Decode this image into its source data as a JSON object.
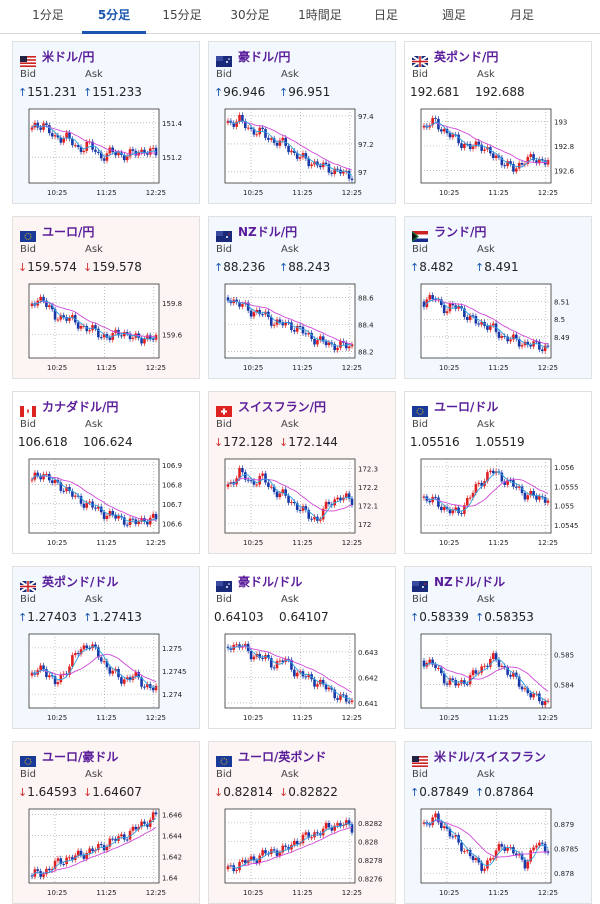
{
  "tabs": [
    "1分足",
    "5分足",
    "15分足",
    "30分足",
    "1時間足",
    "日足",
    "週足",
    "月足"
  ],
  "active_tab": 1,
  "labels": {
    "bid": "Bid",
    "ask": "Ask"
  },
  "colors": {
    "up": "#1a56b0",
    "down": "#d43030",
    "title": "#5a1d9a",
    "bull": "#e02020",
    "bear": "#1838a8",
    "ma_long": "#d048d8",
    "ma_short": "#30a0e0"
  },
  "cards": [
    {
      "pair": "米ドル/円",
      "flag": "us-jp-flag-icon",
      "bid": "151.231",
      "ask": "151.233",
      "dir": "up",
      "chart_data": {
        "type": "candlestick",
        "x_ticks": [
          "10:25",
          "11:25",
          "12:25"
        ],
        "y_ticks": [
          151.2,
          151.4
        ],
        "ylim": [
          151.05,
          151.48
        ],
        "trend": [
          151.36,
          151.4,
          151.3,
          151.33,
          151.24,
          151.28,
          151.2,
          151.23,
          151.21,
          151.22,
          151.24,
          151.22
        ]
      }
    },
    {
      "pair": "豪ドル/円",
      "flag": "au-jp-flag-icon",
      "bid": "96.946",
      "ask": "96.951",
      "dir": "up",
      "chart_data": {
        "type": "candlestick",
        "x_ticks": [
          "10:25",
          "11:25",
          "12:25"
        ],
        "y_ticks": [
          97,
          97.2,
          97.4
        ],
        "ylim": [
          96.92,
          97.45
        ],
        "trend": [
          97.35,
          97.37,
          97.3,
          97.28,
          97.22,
          97.2,
          97.12,
          97.08,
          97.05,
          97.02,
          97.0,
          96.95
        ]
      }
    },
    {
      "pair": "英ポンド/円",
      "flag": "gb-jp-flag-icon",
      "bid": "192.681",
      "ask": "192.688",
      "dir": "flat",
      "chart_data": {
        "type": "candlestick",
        "x_ticks": [
          "10:25",
          "11:25",
          "12:25"
        ],
        "y_ticks": [
          192.6,
          192.8,
          193
        ],
        "ylim": [
          192.5,
          193.1
        ],
        "trend": [
          192.95,
          193.0,
          192.9,
          192.85,
          192.78,
          192.82,
          192.72,
          192.68,
          192.6,
          192.7,
          192.68,
          192.69
        ]
      }
    },
    {
      "pair": "ユーロ/円",
      "flag": "eu-jp-flag-icon",
      "bid": "159.574",
      "ask": "159.578",
      "dir": "down",
      "chart_data": {
        "type": "candlestick",
        "x_ticks": [
          "10:25",
          "11:25",
          "12:25"
        ],
        "y_ticks": [
          159.6,
          159.8
        ],
        "ylim": [
          159.45,
          159.92
        ],
        "trend": [
          159.78,
          159.84,
          159.7,
          159.72,
          159.66,
          159.64,
          159.6,
          159.58,
          159.62,
          159.57,
          159.58,
          159.57
        ]
      }
    },
    {
      "pair": "NZドル/円",
      "flag": "nz-jp-flag-icon",
      "bid": "88.236",
      "ask": "88.243",
      "dir": "up",
      "chart_data": {
        "type": "candlestick",
        "x_ticks": [
          "10:25",
          "11:25",
          "12:25"
        ],
        "y_ticks": [
          88.2,
          88.4,
          88.6
        ],
        "ylim": [
          88.15,
          88.7
        ],
        "trend": [
          88.6,
          88.55,
          88.5,
          88.48,
          88.42,
          88.4,
          88.38,
          88.32,
          88.28,
          88.25,
          88.24,
          88.24
        ]
      }
    },
    {
      "pair": "ランド/円",
      "flag": "za-jp-flag-icon",
      "bid": "8.482",
      "ask": "8.491",
      "dir": "up",
      "chart_data": {
        "type": "candlestick",
        "x_ticks": [
          "10:25",
          "11:25",
          "12:25"
        ],
        "y_ticks": [
          8.49,
          8.5,
          8.51
        ],
        "ylim": [
          8.478,
          8.52
        ],
        "trend": [
          8.51,
          8.512,
          8.505,
          8.508,
          8.5,
          8.498,
          8.495,
          8.49,
          8.488,
          8.486,
          8.485,
          8.484
        ]
      }
    },
    {
      "pair": "カナダドル/円",
      "flag": "ca-jp-flag-icon",
      "bid": "106.618",
      "ask": "106.624",
      "dir": "flat",
      "chart_data": {
        "type": "candlestick",
        "x_ticks": [
          "10:25",
          "11:25",
          "12:25"
        ],
        "y_ticks": [
          106.6,
          106.7,
          106.8,
          106.9
        ],
        "ylim": [
          106.55,
          106.93
        ],
        "trend": [
          106.82,
          106.86,
          106.8,
          106.78,
          106.72,
          106.7,
          106.66,
          106.64,
          106.62,
          106.6,
          106.62,
          106.62
        ]
      }
    },
    {
      "pair": "スイスフラン/円",
      "flag": "ch-jp-flag-icon",
      "bid": "172.128",
      "ask": "172.144",
      "dir": "down",
      "chart_data": {
        "type": "candlestick",
        "x_ticks": [
          "10:25",
          "11:25",
          "12:25"
        ],
        "y_ticks": [
          172,
          172.1,
          172.2,
          172.3
        ],
        "ylim": [
          171.95,
          172.35
        ],
        "trend": [
          172.2,
          172.28,
          172.22,
          172.25,
          172.18,
          172.15,
          172.1,
          172.05,
          172.02,
          172.12,
          172.14,
          172.13
        ]
      }
    },
    {
      "pair": "ユーロ/ドル",
      "flag": "eu-us-flag-icon",
      "bid": "1.05516",
      "ask": "1.05519",
      "dir": "flat",
      "chart_data": {
        "type": "candlestick",
        "x_ticks": [
          "10:25",
          "11:25",
          "12:25"
        ],
        "y_ticks": [
          1.0545,
          1.055,
          1.0555,
          1.056
        ],
        "ylim": [
          1.0543,
          1.0562
        ],
        "trend": [
          1.0552,
          1.0551,
          1.0549,
          1.0548,
          1.0552,
          1.0556,
          1.0559,
          1.0557,
          1.0555,
          1.0553,
          1.0552,
          1.0552
        ]
      }
    },
    {
      "pair": "英ポンド/ドル",
      "flag": "gb-us-flag-icon",
      "bid": "1.27403",
      "ask": "1.27413",
      "dir": "up",
      "chart_data": {
        "type": "candlestick",
        "x_ticks": [
          "10:25",
          "11:25",
          "12:25"
        ],
        "y_ticks": [
          1.274,
          1.2745,
          1.275
        ],
        "ylim": [
          1.2737,
          1.2753
        ],
        "trend": [
          1.2744,
          1.2746,
          1.2742,
          1.2745,
          1.2749,
          1.2751,
          1.2748,
          1.2745,
          1.2743,
          1.2744,
          1.2742,
          1.2741
        ]
      }
    },
    {
      "pair": "豪ドル/ドル",
      "flag": "au-us-flag-icon",
      "bid": "0.64103",
      "ask": "0.64107",
      "dir": "flat",
      "chart_data": {
        "type": "candlestick",
        "x_ticks": [
          "10:25",
          "11:25",
          "12:25"
        ],
        "y_ticks": [
          0.641,
          0.642,
          0.643
        ],
        "ylim": [
          0.6408,
          0.6437
        ],
        "trend": [
          0.6432,
          0.6433,
          0.6429,
          0.6428,
          0.6425,
          0.6427,
          0.6422,
          0.642,
          0.6418,
          0.6415,
          0.6412,
          0.641
        ]
      }
    },
    {
      "pair": "NZドル/ドル",
      "flag": "nz-us-flag-icon",
      "bid": "0.58339",
      "ask": "0.58353",
      "dir": "up",
      "chart_data": {
        "type": "candlestick",
        "x_ticks": [
          "10:25",
          "11:25",
          "12:25"
        ],
        "y_ticks": [
          0.584,
          0.585
        ],
        "ylim": [
          0.5832,
          0.5857
        ],
        "trend": [
          0.5848,
          0.5846,
          0.5841,
          0.584,
          0.5842,
          0.5845,
          0.5849,
          0.5846,
          0.5842,
          0.5838,
          0.5835,
          0.5834
        ]
      }
    },
    {
      "pair": "ユーロ/豪ドル",
      "flag": "eu-au-flag-icon",
      "bid": "1.64593",
      "ask": "1.64607",
      "dir": "down",
      "chart_data": {
        "type": "candlestick",
        "x_ticks": [
          "10:25",
          "11:25",
          "12:25"
        ],
        "y_ticks": [
          1.64,
          1.642,
          1.644,
          1.646
        ],
        "ylim": [
          1.6395,
          1.6465
        ],
        "trend": [
          1.6402,
          1.6405,
          1.6412,
          1.6418,
          1.642,
          1.6425,
          1.6428,
          1.6435,
          1.6438,
          1.6445,
          1.6452,
          1.6459
        ]
      }
    },
    {
      "pair": "ユーロ/英ポンド",
      "flag": "eu-gb-flag-icon",
      "bid": "0.82814",
      "ask": "0.82822",
      "dir": "down",
      "chart_data": {
        "type": "candlestick",
        "x_ticks": [
          "10:25",
          "11:25",
          "12:25"
        ],
        "y_ticks": [
          0.8276,
          0.8278,
          0.828,
          0.8282
        ],
        "ylim": [
          0.82755,
          0.82835
        ],
        "trend": [
          0.8277,
          0.82775,
          0.8278,
          0.82785,
          0.8279,
          0.8279,
          0.828,
          0.82805,
          0.8281,
          0.82815,
          0.8282,
          0.82814
        ]
      }
    },
    {
      "pair": "米ドル/スイスフラン",
      "flag": "us-ch-flag-icon",
      "bid": "0.87849",
      "ask": "0.87864",
      "dir": "up",
      "chart_data": {
        "type": "candlestick",
        "x_ticks": [
          "10:25",
          "11:25",
          "12:25"
        ],
        "y_ticks": [
          0.878,
          0.8785,
          0.879
        ],
        "ylim": [
          0.8778,
          0.8793
        ],
        "trend": [
          0.879,
          0.8791,
          0.8789,
          0.8786,
          0.8784,
          0.8781,
          0.8783,
          0.8786,
          0.8784,
          0.8782,
          0.8786,
          0.8785
        ]
      }
    }
  ]
}
